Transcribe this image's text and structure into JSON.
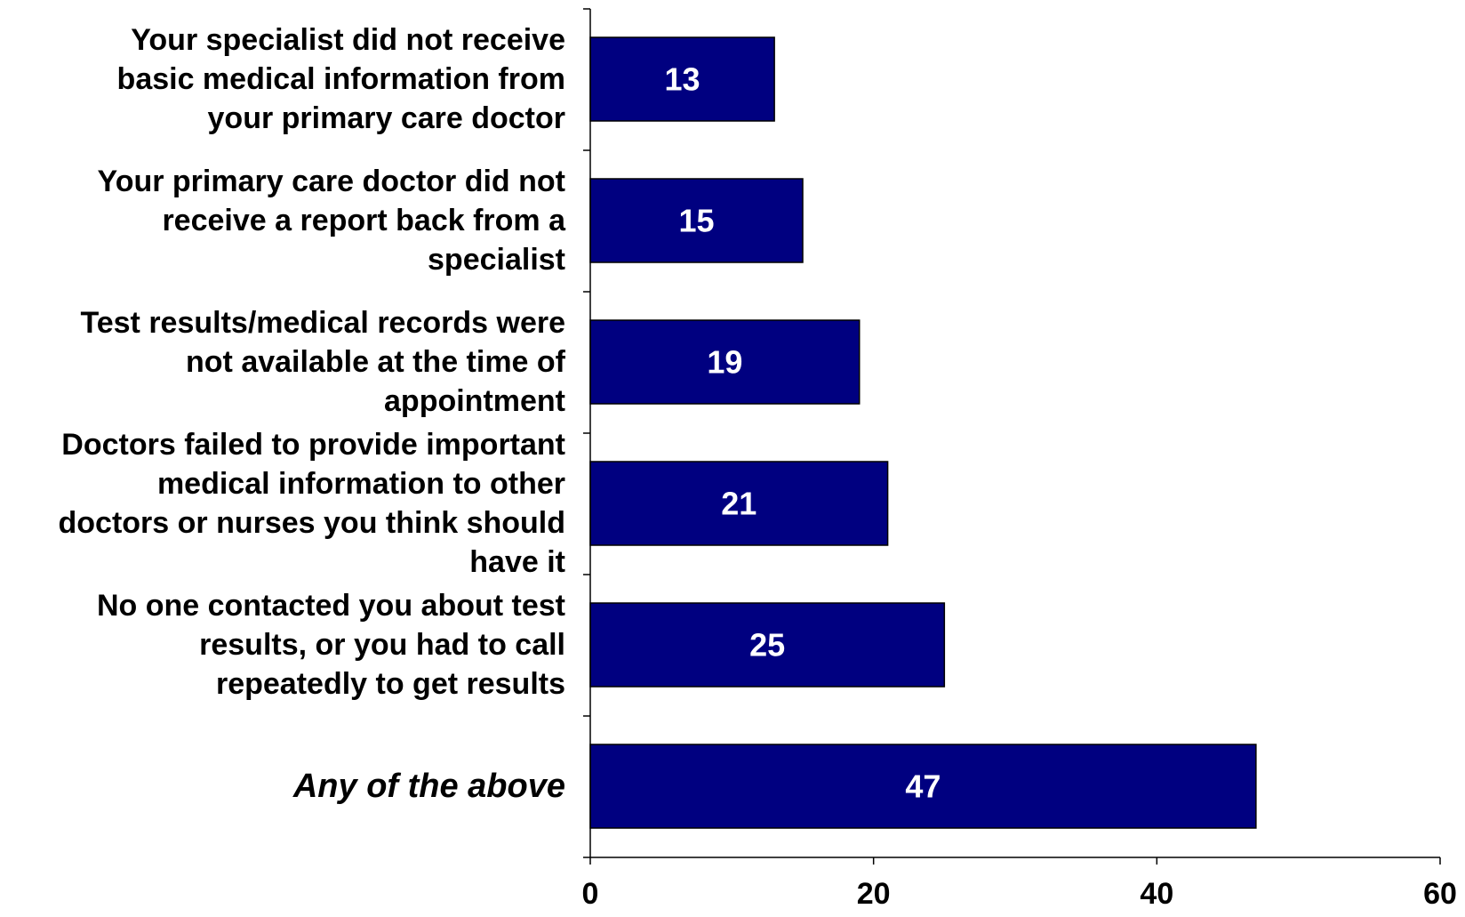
{
  "chart_data": {
    "type": "bar",
    "orientation": "horizontal",
    "categories": [
      {
        "lines": [
          "Your specialist did not receive",
          "basic medical information from",
          "your primary care doctor"
        ],
        "italic": false
      },
      {
        "lines": [
          "Your primary care doctor did not",
          "receive a report back from a",
          "specialist"
        ],
        "italic": false
      },
      {
        "lines": [
          "Test results/medical records were",
          "not available at the time of",
          "appointment"
        ],
        "italic": false
      },
      {
        "lines": [
          "Doctors failed to provide important",
          "medical information to other",
          "doctors or nurses you think should",
          "have it"
        ],
        "italic": false
      },
      {
        "lines": [
          "No one contacted you about test",
          "results, or you had to call",
          "repeatedly to get results"
        ],
        "italic": false
      },
      {
        "lines": [
          "Any of the above"
        ],
        "italic": true
      }
    ],
    "values": [
      13,
      15,
      19,
      21,
      25,
      47
    ],
    "data_labels": [
      "13",
      "15",
      "19",
      "21",
      "25",
      "47"
    ],
    "xlim": [
      0,
      60
    ],
    "xticks": [
      0,
      20,
      40,
      60
    ],
    "xtick_labels": [
      "0",
      "20",
      "40",
      "60"
    ],
    "grid": false,
    "legend": "none",
    "colors": {
      "bar_fill": "#000080",
      "bar_stroke": "#000000",
      "data_label": "#ffffff",
      "axis": "#000000",
      "text": "#000000"
    }
  }
}
